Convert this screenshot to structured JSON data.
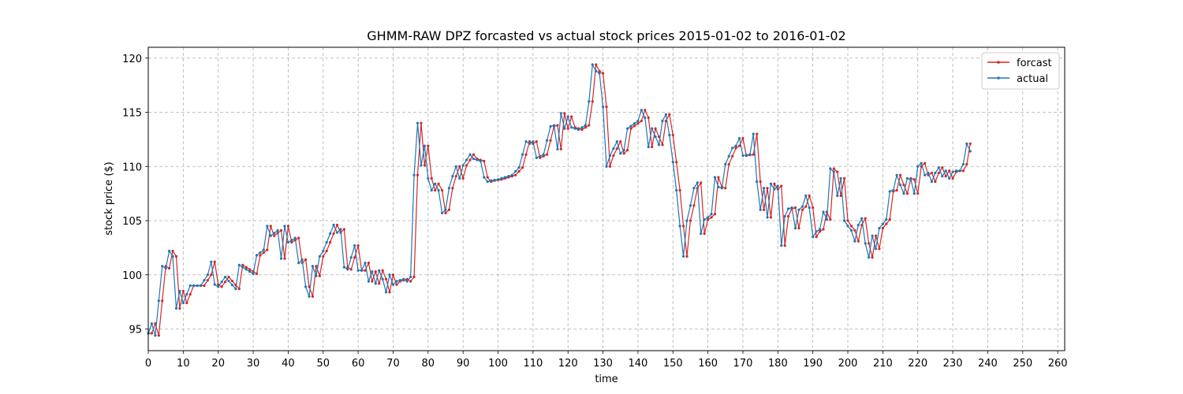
{
  "chart_data": {
    "type": "line",
    "title": "GHMM-RAW DPZ forcasted vs actual stock prices 2015-01-02 to 2016-01-02",
    "xlabel": "time",
    "ylabel": "stock price ($)",
    "xlim": [
      0,
      262
    ],
    "ylim": [
      93,
      121
    ],
    "xticks": [
      0,
      10,
      20,
      30,
      40,
      50,
      60,
      70,
      80,
      90,
      100,
      110,
      120,
      130,
      140,
      150,
      160,
      170,
      180,
      190,
      200,
      210,
      220,
      230,
      240,
      250,
      260
    ],
    "yticks": [
      95,
      100,
      105,
      110,
      115,
      120
    ],
    "grid": true,
    "legend_position": "top-right",
    "actual_anchors": [
      [
        0,
        94.6
      ],
      [
        1,
        95.5
      ],
      [
        2,
        94.4
      ],
      [
        3,
        97.6
      ],
      [
        4,
        100.8
      ],
      [
        5,
        100.6
      ],
      [
        6,
        102.2
      ],
      [
        7,
        101.7
      ],
      [
        8,
        96.9
      ],
      [
        9,
        98.5
      ],
      [
        10,
        97.4
      ],
      [
        12,
        99.0
      ],
      [
        15,
        99.0
      ],
      [
        17,
        100.0
      ],
      [
        18,
        101.2
      ],
      [
        19,
        99.1
      ],
      [
        20,
        98.9
      ],
      [
        22,
        99.8
      ],
      [
        25,
        98.7
      ],
      [
        26,
        100.9
      ],
      [
        30,
        100.1
      ],
      [
        31,
        101.8
      ],
      [
        33,
        102.3
      ],
      [
        34,
        104.5
      ],
      [
        35,
        103.6
      ],
      [
        37,
        104.1
      ],
      [
        38,
        101.5
      ],
      [
        39,
        104.5
      ],
      [
        40,
        103.0
      ],
      [
        42,
        103.4
      ],
      [
        43,
        101.1
      ],
      [
        44,
        101.4
      ],
      [
        45,
        98.9
      ],
      [
        46,
        98.0
      ],
      [
        47,
        100.8
      ],
      [
        48,
        99.9
      ],
      [
        49,
        101.7
      ],
      [
        50,
        102.2
      ],
      [
        52,
        103.8
      ],
      [
        53,
        104.6
      ],
      [
        54,
        103.9
      ],
      [
        55,
        104.2
      ],
      [
        56,
        100.7
      ],
      [
        57,
        100.5
      ],
      [
        59,
        102.7
      ],
      [
        60,
        100.4
      ],
      [
        61,
        100.4
      ],
      [
        62,
        101.1
      ],
      [
        63,
        99.4
      ],
      [
        64,
        100.3
      ],
      [
        65,
        99.2
      ],
      [
        66,
        100.4
      ],
      [
        67,
        99.6
      ],
      [
        68,
        98.4
      ],
      [
        69,
        100.0
      ],
      [
        70,
        99.1
      ],
      [
        71,
        99.4
      ],
      [
        72,
        99.5
      ],
      [
        73,
        99.6
      ],
      [
        74,
        99.4
      ],
      [
        75,
        99.8
      ],
      [
        76,
        109.2
      ],
      [
        77,
        114.0
      ],
      [
        78,
        110.1
      ],
      [
        79,
        111.9
      ],
      [
        80,
        108.9
      ],
      [
        81,
        107.8
      ],
      [
        82,
        108.4
      ],
      [
        83,
        107.8
      ],
      [
        84,
        105.7
      ],
      [
        85,
        106.0
      ],
      [
        86,
        108.0
      ],
      [
        87,
        109.1
      ],
      [
        88,
        110.0
      ],
      [
        89,
        108.9
      ],
      [
        90,
        110.1
      ],
      [
        92,
        111.1
      ],
      [
        93,
        110.7
      ],
      [
        95,
        110.5
      ],
      [
        96,
        109.0
      ],
      [
        97,
        108.6
      ],
      [
        98,
        108.7
      ],
      [
        100,
        108.8
      ],
      [
        102,
        109.0
      ],
      [
        104,
        109.2
      ],
      [
        106,
        109.9
      ],
      [
        108,
        112.3
      ],
      [
        109,
        112.1
      ],
      [
        110,
        112.3
      ],
      [
        111,
        110.8
      ],
      [
        113,
        111.1
      ],
      [
        115,
        113.7
      ],
      [
        116,
        113.8
      ],
      [
        117,
        111.6
      ],
      [
        118,
        114.9
      ],
      [
        119,
        113.5
      ],
      [
        120,
        114.6
      ],
      [
        121,
        113.6
      ],
      [
        123,
        113.4
      ],
      [
        125,
        113.8
      ],
      [
        126,
        116.0
      ],
      [
        127,
        119.4
      ],
      [
        128,
        118.8
      ],
      [
        129,
        118.6
      ],
      [
        130,
        115.5
      ],
      [
        131,
        110.0
      ],
      [
        132,
        111.0
      ],
      [
        134,
        112.3
      ],
      [
        135,
        111.2
      ],
      [
        136,
        111.5
      ],
      [
        137,
        113.5
      ],
      [
        140,
        114.2
      ],
      [
        141,
        115.2
      ],
      [
        142,
        114.5
      ],
      [
        143,
        111.8
      ],
      [
        144,
        113.5
      ],
      [
        146,
        112.0
      ],
      [
        147,
        114.2
      ],
      [
        148,
        114.8
      ],
      [
        149,
        112.9
      ],
      [
        150,
        110.4
      ],
      [
        151,
        107.8
      ],
      [
        152,
        104.5
      ],
      [
        153,
        101.7
      ],
      [
        154,
        105.0
      ],
      [
        155,
        106.4
      ],
      [
        156,
        108.0
      ],
      [
        157,
        108.5
      ],
      [
        158,
        103.8
      ],
      [
        159,
        105.1
      ],
      [
        160,
        105.3
      ],
      [
        161,
        105.6
      ],
      [
        162,
        109.0
      ],
      [
        163,
        108.1
      ],
      [
        164,
        108.0
      ],
      [
        165,
        110.2
      ],
      [
        167,
        111.7
      ],
      [
        168,
        111.9
      ],
      [
        169,
        112.6
      ],
      [
        170,
        111.0
      ],
      [
        172,
        111.1
      ],
      [
        173,
        113.0
      ],
      [
        174,
        108.6
      ],
      [
        175,
        106.0
      ],
      [
        176,
        108.0
      ],
      [
        177,
        105.3
      ],
      [
        178,
        108.4
      ],
      [
        179,
        107.9
      ],
      [
        180,
        108.2
      ],
      [
        181,
        102.7
      ],
      [
        182,
        105.4
      ],
      [
        183,
        106.1
      ],
      [
        184,
        106.2
      ],
      [
        185,
        104.3
      ],
      [
        186,
        106.0
      ],
      [
        187,
        106.3
      ],
      [
        188,
        107.3
      ],
      [
        189,
        106.2
      ],
      [
        190,
        103.5
      ],
      [
        191,
        104.0
      ],
      [
        192,
        104.2
      ],
      [
        193,
        105.8
      ],
      [
        194,
        105.1
      ],
      [
        195,
        109.8
      ],
      [
        196,
        109.5
      ],
      [
        197,
        107.3
      ],
      [
        198,
        108.9
      ],
      [
        199,
        105.0
      ],
      [
        200,
        104.5
      ],
      [
        201,
        104.1
      ],
      [
        202,
        103.1
      ],
      [
        203,
        104.6
      ],
      [
        204,
        105.2
      ],
      [
        205,
        102.9
      ],
      [
        206,
        101.6
      ],
      [
        207,
        103.6
      ],
      [
        208,
        102.4
      ],
      [
        209,
        104.3
      ],
      [
        210,
        104.7
      ],
      [
        211,
        105.1
      ],
      [
        212,
        107.7
      ],
      [
        213,
        107.8
      ],
      [
        214,
        109.2
      ],
      [
        215,
        108.3
      ],
      [
        216,
        107.5
      ],
      [
        217,
        108.9
      ],
      [
        218,
        108.8
      ],
      [
        219,
        107.5
      ],
      [
        220,
        110.0
      ],
      [
        221,
        110.3
      ],
      [
        222,
        109.2
      ],
      [
        223,
        109.4
      ],
      [
        224,
        108.6
      ],
      [
        225,
        109.4
      ],
      [
        226,
        109.9
      ],
      [
        227,
        109.1
      ],
      [
        228,
        109.6
      ],
      [
        229,
        108.9
      ],
      [
        230,
        109.5
      ],
      [
        231,
        109.6
      ],
      [
        232,
        109.6
      ],
      [
        233,
        110.2
      ],
      [
        234,
        112.1
      ],
      [
        235,
        111.4
      ]
    ],
    "forecast_lag": 1,
    "series": [
      {
        "name": "forcast",
        "color": "#d62728"
      },
      {
        "name": "actual",
        "color": "#1f77b4"
      }
    ]
  }
}
